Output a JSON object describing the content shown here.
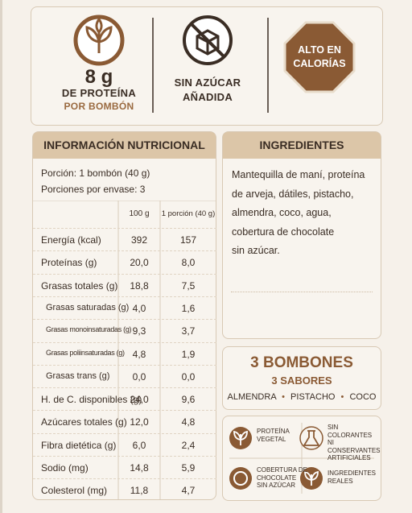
{
  "badges": {
    "protein": {
      "amount": "8 g",
      "line1": "DE PROTEÍNA",
      "line2": "POR BOMBÓN"
    },
    "sugar": {
      "line1": "SIN AZÚCAR",
      "line2": "AÑADIDA"
    },
    "warning": {
      "line1": "ALTO EN",
      "line2": "CALORÍAS"
    }
  },
  "nutrition": {
    "title": "INFORMACIÓN NUTRICIONAL",
    "serving": "Porción: 1 bombón (40 g)",
    "servings_per_container": "Porciones por envase: 3",
    "columns": [
      "100 g",
      "1 porción (40 g)"
    ],
    "rows": [
      [
        "Energía (kcal)",
        "392",
        "157"
      ],
      [
        "Proteínas (g)",
        "20,0",
        "8,0"
      ],
      [
        "Grasas totales (g)",
        "18,8",
        "7,5"
      ],
      [
        "Grasas saturadas (g)",
        "4,0",
        "1,6"
      ],
      [
        "Grasas monoinsaturadas (g)",
        "9,3",
        "3,7"
      ],
      [
        "Grasas poliinsaturadas (g)",
        "4,8",
        "1,9"
      ],
      [
        "Grasas trans (g)",
        "0,0",
        "0,0"
      ],
      [
        "H. de C. disponibles (g)",
        "24,0",
        "9,6"
      ],
      [
        "Azúcares totales (g)",
        "12,0",
        "4,8"
      ],
      [
        "Fibra dietética (g)",
        "6,0",
        "2,4"
      ],
      [
        "Sodio (mg)",
        "14,8",
        "5,9"
      ],
      [
        "Colesterol (mg)",
        "11,8",
        "4,7"
      ]
    ]
  },
  "ingredients": {
    "title": "INGREDIENTES",
    "lines": [
      "Mantequilla de maní, proteína",
      "de arveja, dátiles, pistacho,",
      "almendra, coco, agua,",
      "cobertura de chocolate",
      "sin azúcar."
    ]
  },
  "bombones": {
    "title": "3 BOMBONES",
    "subtitle": "3 SABORES",
    "flavors": [
      "ALMENDRA",
      "PISTACHO",
      "COCO"
    ]
  },
  "features": [
    [
      "PROTEÍNA",
      "VEGETAL"
    ],
    [
      "SIN COLORANTES",
      "NI CONSERVANTES",
      "ARTIFICIALES"
    ],
    [
      "COBERTURA DE",
      "CHOCOLATE",
      "SIN AZÚCAR"
    ],
    [
      "INGREDIENTES",
      "REALES"
    ]
  ]
}
